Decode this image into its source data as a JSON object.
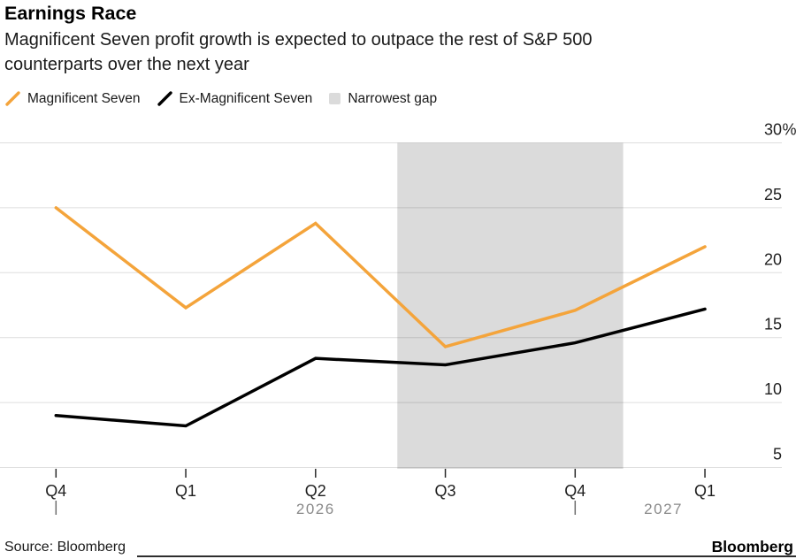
{
  "header": {
    "title": "Earnings Race",
    "subtitle_line1": "Magnificent Seven profit growth is expected to outpace the rest of S&P 500",
    "subtitle_line2": "counterparts over the next year"
  },
  "legend": [
    {
      "label": "Magnificent Seven",
      "swatch": "diagonal-line",
      "color": "#F4A43B"
    },
    {
      "label": "Ex-Magnificent Seven",
      "swatch": "diagonal-line",
      "color": "#000000"
    },
    {
      "label": "Narrowest gap",
      "swatch": "square",
      "color": "#DBDBDB"
    }
  ],
  "chart_data": {
    "type": "line",
    "title": "Earnings Race",
    "categories": [
      "Q4",
      "Q1",
      "Q2",
      "Q3",
      "Q4",
      "Q1"
    ],
    "series": [
      {
        "name": "Magnificent Seven",
        "color": "#F4A43B",
        "values": [
          25.0,
          17.3,
          23.8,
          14.3,
          17.1,
          22.0
        ]
      },
      {
        "name": "Ex-Magnificent Seven",
        "color": "#000000",
        "values": [
          9.0,
          8.2,
          13.4,
          12.9,
          14.6,
          17.2
        ]
      }
    ],
    "band": {
      "name": "Narrowest gap",
      "color": "#DBDBDB",
      "x_from": 2.63,
      "x_to": 4.37
    },
    "ylim": [
      5,
      30
    ],
    "yticks": [
      5,
      10,
      15,
      20,
      25,
      30
    ],
    "ytick_top_suffix": "%",
    "grid": "horizontal",
    "legend_position": "top",
    "year_markers": [
      {
        "kind": "divider",
        "at": 0
      },
      {
        "kind": "year",
        "label": "2026",
        "at": 2
      },
      {
        "kind": "divider",
        "at": 4
      },
      {
        "kind": "year",
        "label": "2027",
        "at": 4.68
      }
    ]
  },
  "footer": {
    "source": "Source: Bloomberg",
    "brand": "Bloomberg"
  }
}
